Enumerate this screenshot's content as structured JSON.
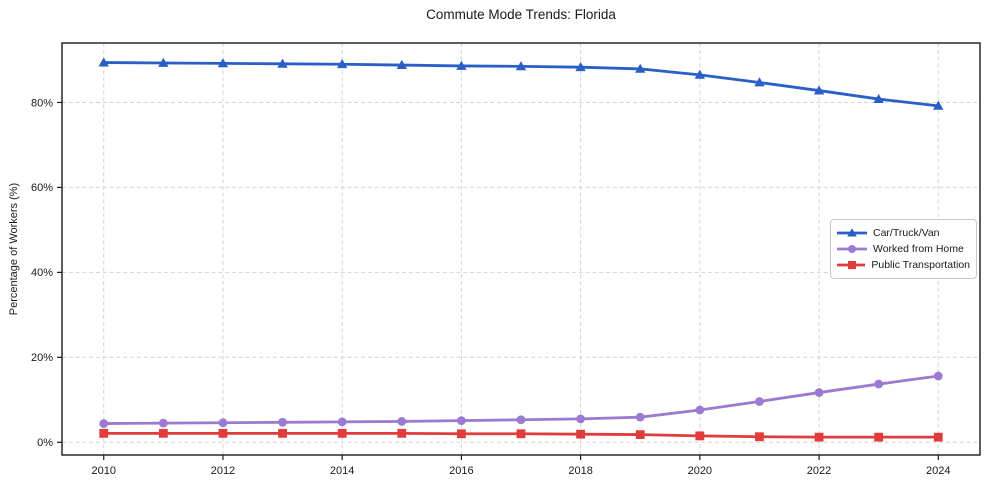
{
  "title": "Commute Mode Trends: Florida",
  "ylabel": "Percentage of Workers (%)",
  "colors": {
    "car": "#2a5fc7",
    "wfh": "#9b7ad2",
    "transit": "#e03c3c",
    "grid": "#d3d3d3",
    "spine": "#1a1a1a"
  },
  "chart_data": {
    "type": "line",
    "title": "Commute Mode Trends: Florida",
    "xlabel": "",
    "ylabel": "Percentage of Workers (%)",
    "x": [
      2010,
      2011,
      2012,
      2013,
      2014,
      2015,
      2016,
      2017,
      2018,
      2019,
      2020,
      2021,
      2022,
      2023,
      2024
    ],
    "series": [
      {
        "name": "Car/Truck/Van",
        "color": "#2a5fc7",
        "marker": "triangle",
        "values": [
          89.4,
          89.3,
          89.2,
          89.1,
          89.0,
          88.8,
          88.6,
          88.5,
          88.3,
          87.9,
          86.5,
          84.7,
          82.8,
          80.8,
          79.2
        ]
      },
      {
        "name": "Worked from Home",
        "color": "#9b7ad2",
        "marker": "circle",
        "values": [
          4.4,
          4.5,
          4.6,
          4.7,
          4.8,
          4.9,
          5.1,
          5.3,
          5.5,
          5.9,
          7.6,
          9.6,
          11.7,
          13.7,
          15.6
        ]
      },
      {
        "name": "Public Transportation",
        "color": "#e03c3c",
        "marker": "square",
        "values": [
          2.1,
          2.1,
          2.1,
          2.1,
          2.1,
          2.1,
          2.0,
          2.0,
          1.9,
          1.8,
          1.5,
          1.3,
          1.2,
          1.2,
          1.2
        ]
      }
    ],
    "xticks": [
      2010,
      2012,
      2014,
      2016,
      2018,
      2020,
      2022,
      2024
    ],
    "xtick_labels": [
      "2010",
      "2012",
      "2014",
      "2016",
      "2018",
      "2020",
      "2022",
      "2024"
    ],
    "yticks": [
      0,
      20,
      40,
      60,
      80
    ],
    "ytick_labels": [
      "0%",
      "20%",
      "40%",
      "60%",
      "80%"
    ],
    "xlim": [
      2009.3,
      2024.7
    ],
    "ylim": [
      -3,
      94
    ],
    "grid": true,
    "legend_position": "right-middle"
  }
}
